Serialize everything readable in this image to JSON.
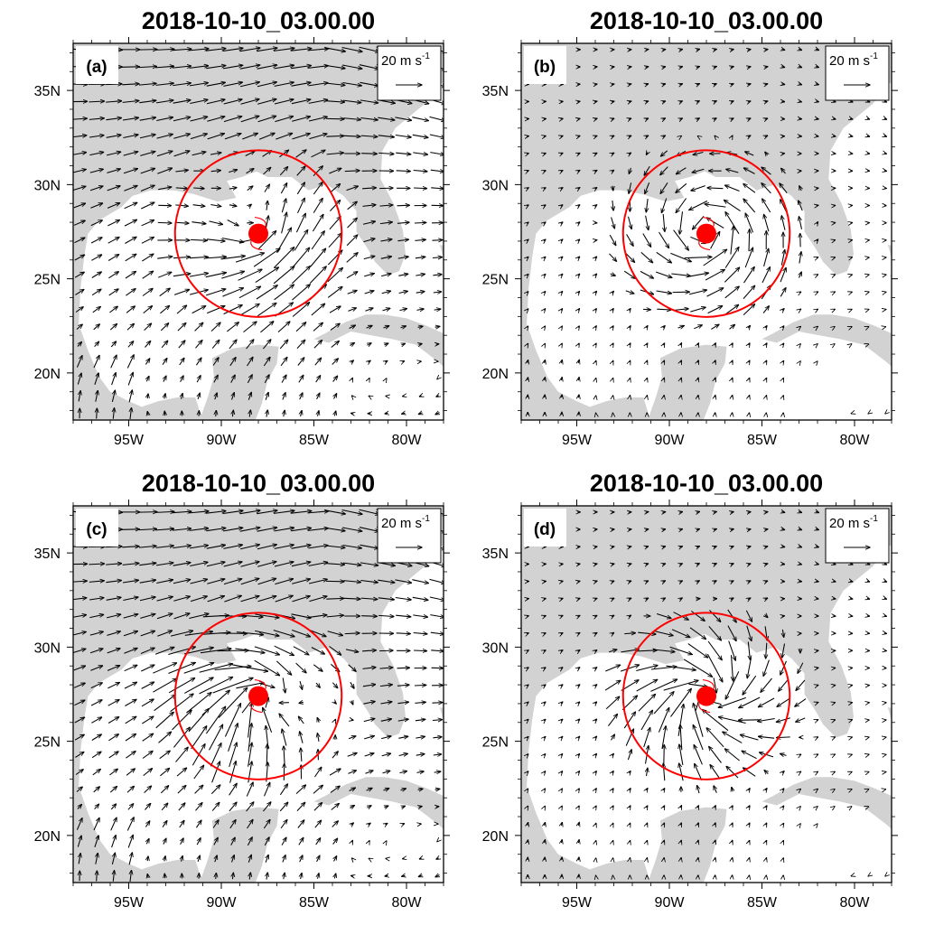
{
  "figure": {
    "map_extent": {
      "lon": [
        -98,
        -78
      ],
      "lat": [
        17.5,
        37.5
      ]
    },
    "land_color": "#d2d2d2",
    "ocean_color": "#ffffff",
    "ring_color": "#ff0000",
    "storm_center": {
      "lon": -88.0,
      "lat": 27.4
    },
    "ring_radius_deg": 4.5,
    "lon_ticks": [
      {
        "value": -95,
        "label": "95W"
      },
      {
        "value": -90,
        "label": "90W"
      },
      {
        "value": -85,
        "label": "85W"
      },
      {
        "value": -80,
        "label": "80W"
      }
    ],
    "lat_ticks": [
      {
        "value": 20,
        "label": "20N"
      },
      {
        "value": 25,
        "label": "25N"
      },
      {
        "value": 30,
        "label": "30N"
      },
      {
        "value": 35,
        "label": "35N"
      }
    ],
    "reference_vector": {
      "text": "20 m s",
      "superscript": "-1",
      "magnitude_ms": 20
    }
  },
  "panels": [
    {
      "id": "a",
      "label": "(a)",
      "title": "2018-10-10_03.00.00",
      "field": "full"
    },
    {
      "id": "b",
      "label": "(b)",
      "title": "2018-10-10_03.00.00",
      "field": "vortex"
    },
    {
      "id": "c",
      "label": "(c)",
      "title": "2018-10-10_03.00.00",
      "field": "full_bogus"
    },
    {
      "id": "d",
      "label": "(d)",
      "title": "2018-10-10_03.00.00",
      "field": "bogus_vortex"
    }
  ]
}
